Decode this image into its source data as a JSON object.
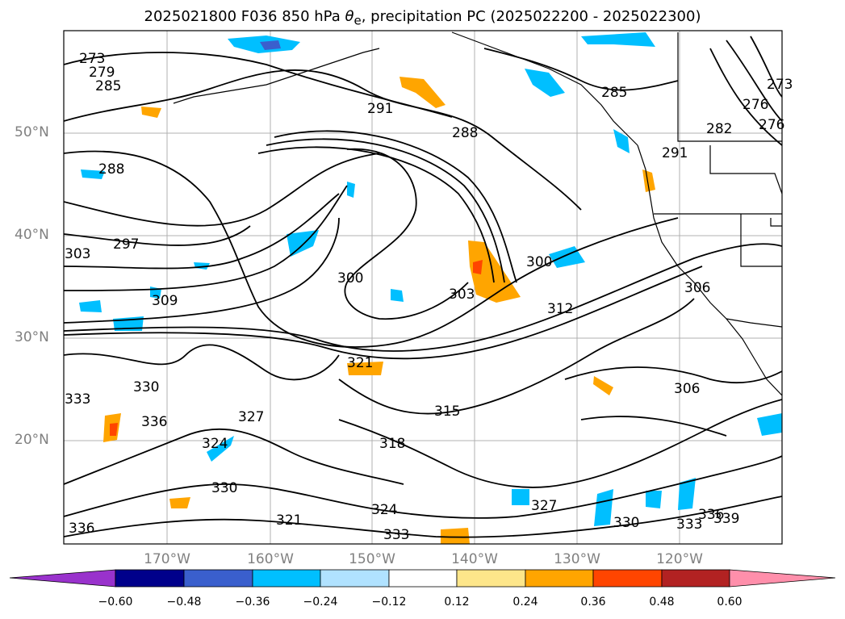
{
  "title": {
    "prefix": "2025021800 F036 850 hPa ",
    "theta": "θ",
    "sub": "e",
    "suffix": ", precipitation PC (2025022200 - 2025022300)"
  },
  "latitude_labels": [
    "50°N",
    "40°N",
    "30°N",
    "20°N"
  ],
  "longitude_labels": [
    "170°W",
    "160°W",
    "150°W",
    "140°W",
    "130°W",
    "120°W"
  ],
  "contour_labels": [
    "273",
    "279",
    "285",
    "288",
    "291",
    "288",
    "285",
    "282",
    "276",
    "273",
    "276",
    "291",
    "297",
    "303",
    "300",
    "300",
    "303",
    "306",
    "309",
    "312",
    "321",
    "330",
    "333",
    "336",
    "327",
    "324",
    "318",
    "315",
    "306",
    "327",
    "330",
    "333",
    "336",
    "339",
    "324",
    "321",
    "330",
    "336",
    "333"
  ],
  "colorbar": {
    "ticks": [
      "−0.60",
      "−0.48",
      "−0.36",
      "−0.24",
      "−0.12",
      "0.12",
      "0.24",
      "0.36",
      "0.48",
      "0.60"
    ],
    "colors": [
      "#9932cc",
      "#00008b",
      "#3a5fcd",
      "#00bfff",
      "#b0e2ff",
      "#ffffff",
      "#fde68a",
      "#ffa500",
      "#ff4500",
      "#b22222",
      "#ff8fab"
    ]
  },
  "colors": {
    "grid": "#b0b0b0",
    "contour": "#000000",
    "axis_text": "#808080"
  }
}
